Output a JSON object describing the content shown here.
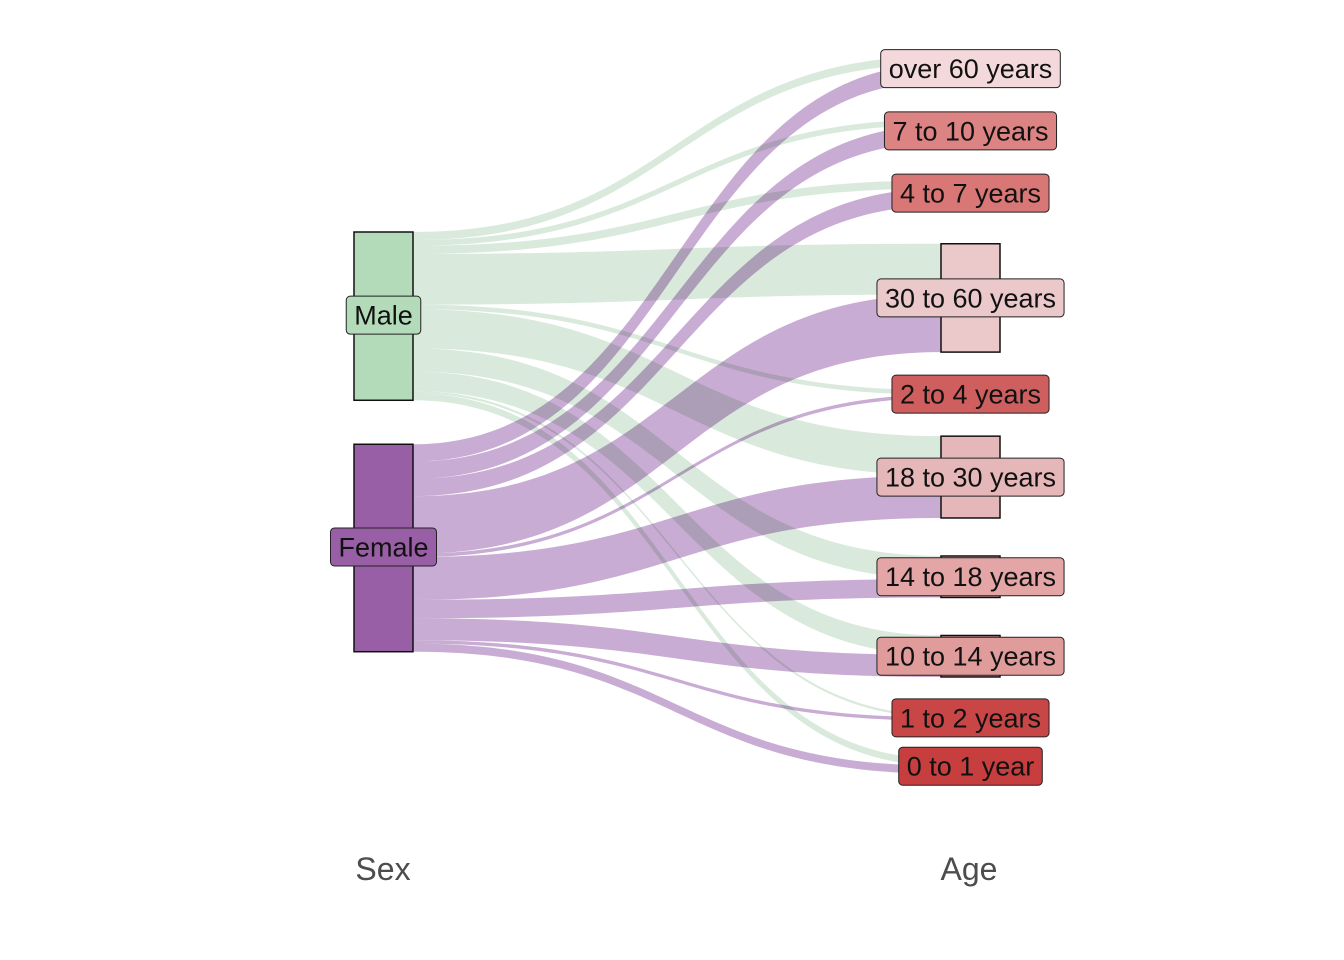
{
  "axes": [
    "Sex",
    "Age"
  ],
  "colors": {
    "Male": "#b3dbb9",
    "Female": "#985fa6",
    "flow_Male": "#d9eadc",
    "flow_Female": "#c8aad2"
  },
  "sex_nodes": [
    {
      "id": "Male",
      "label": "Male"
    },
    {
      "id": "Female",
      "label": "Female"
    }
  ],
  "age_nodes": [
    {
      "id": "over60",
      "label": "over 60 years",
      "color": "#f3d9dc"
    },
    {
      "id": "7to10",
      "label": "7 to 10 years",
      "color": "#dc8383"
    },
    {
      "id": "4to7",
      "label": "4 to 7 years",
      "color": "#d97676"
    },
    {
      "id": "30to60",
      "label": "30 to 60 years",
      "color": "#ebc8ca"
    },
    {
      "id": "2to4",
      "label": "2 to 4 years",
      "color": "#cf5e5e"
    },
    {
      "id": "18to30",
      "label": "18 to 30 years",
      "color": "#e6b7b8"
    },
    {
      "id": "14to18",
      "label": "14 to 18 years",
      "color": "#e3a5a5"
    },
    {
      "id": "10to14",
      "label": "10 to 14 years",
      "color": "#e09b9b"
    },
    {
      "id": "1to2",
      "label": "1 to 2 years",
      "color": "#c94646"
    },
    {
      "id": "0to1",
      "label": "0 to 1 year",
      "color": "#c63e3e"
    }
  ],
  "flows": [
    {
      "sex": "Male",
      "age": "over60",
      "value": 7
    },
    {
      "sex": "Male",
      "age": "7to10",
      "value": 5
    },
    {
      "sex": "Male",
      "age": "4to7",
      "value": 7
    },
    {
      "sex": "Male",
      "age": "30to60",
      "value": 44
    },
    {
      "sex": "Male",
      "age": "2to4",
      "value": 4
    },
    {
      "sex": "Male",
      "age": "18to30",
      "value": 34
    },
    {
      "sex": "Male",
      "age": "14to18",
      "value": 20
    },
    {
      "sex": "Male",
      "age": "10to14",
      "value": 17
    },
    {
      "sex": "Male",
      "age": "1to2",
      "value": 2
    },
    {
      "sex": "Male",
      "age": "0to1",
      "value": 6
    },
    {
      "sex": "Female",
      "age": "over60",
      "value": 15
    },
    {
      "sex": "Female",
      "age": "7to10",
      "value": 15
    },
    {
      "sex": "Female",
      "age": "4to7",
      "value": 15
    },
    {
      "sex": "Female",
      "age": "30to60",
      "value": 50
    },
    {
      "sex": "Female",
      "age": "2to4",
      "value": 3
    },
    {
      "sex": "Female",
      "age": "18to30",
      "value": 37
    },
    {
      "sex": "Female",
      "age": "14to18",
      "value": 16
    },
    {
      "sex": "Female",
      "age": "10to14",
      "value": 19
    },
    {
      "sex": "Female",
      "age": "1to2",
      "value": 3
    },
    {
      "sex": "Female",
      "age": "0to1",
      "value": 7
    }
  ]
}
